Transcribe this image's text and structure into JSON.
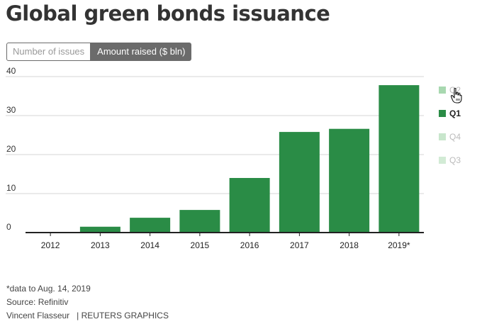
{
  "title": "Global green bonds issuance",
  "toggle": {
    "options": [
      "Number of issues",
      "Amount raised ($ bln)"
    ],
    "selected": "Amount raised ($ bln)"
  },
  "legend": [
    {
      "label": "Q2",
      "color": "#a8d8b0",
      "active": false
    },
    {
      "label": "Q1",
      "color": "#2a8c46",
      "active": true
    },
    {
      "label": "Q4",
      "color": "#c8e6cc",
      "active": false
    },
    {
      "label": "Q3",
      "color": "#d2ebd5",
      "active": false
    }
  ],
  "chart_data": {
    "type": "bar",
    "categories": [
      "2012",
      "2013",
      "2014",
      "2015",
      "2016",
      "2017",
      "2018",
      "2019*"
    ],
    "values": [
      0,
      1.5,
      3.8,
      5.8,
      14,
      25.8,
      26.6,
      37.8
    ],
    "series_name": "Q1",
    "color": "#2a8c46",
    "ylim": [
      0,
      40
    ],
    "yticks": [
      "0",
      "10",
      "20",
      "30",
      "40"
    ],
    "grid": true,
    "legend_position": "right"
  },
  "footer": {
    "note": "*data to Aug. 14, 2019",
    "source": "Source: Refinitiv",
    "author": "Vincent Flasseur",
    "brand": "| REUTERS GRAPHICS"
  }
}
